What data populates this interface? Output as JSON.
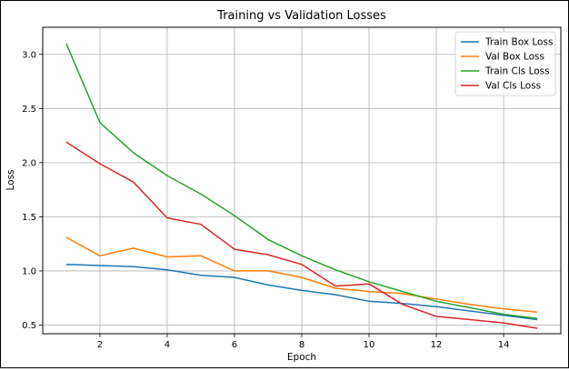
{
  "chart_data": {
    "type": "line",
    "title": "Training vs Validation Losses",
    "xlabel": "Epoch",
    "ylabel": "Loss",
    "x": [
      1,
      2,
      3,
      4,
      5,
      6,
      7,
      8,
      9,
      10,
      11,
      12,
      13,
      14,
      15
    ],
    "xlim": [
      0.3,
      15.7
    ],
    "ylim": [
      0.42,
      3.25
    ],
    "xticks": [
      2,
      4,
      6,
      8,
      10,
      12,
      14
    ],
    "yticks": [
      0.5,
      1.0,
      1.5,
      2.0,
      2.5,
      3.0
    ],
    "xtick_labels": [
      "2",
      "4",
      "6",
      "8",
      "10",
      "12",
      "14"
    ],
    "ytick_labels": [
      "0.5",
      "1.0",
      "1.5",
      "2.0",
      "2.5",
      "3.0"
    ],
    "grid": true,
    "legend_position": "top-right",
    "series": [
      {
        "name": "Train Box Loss",
        "color": "#1f77b4",
        "values": [
          1.06,
          1.05,
          1.04,
          1.01,
          0.96,
          0.94,
          0.87,
          0.82,
          0.78,
          0.72,
          0.7,
          0.67,
          0.63,
          0.59,
          0.55
        ]
      },
      {
        "name": "Val Box Loss",
        "color": "#ff7f0e",
        "values": [
          1.31,
          1.14,
          1.21,
          1.13,
          1.14,
          1.0,
          1.0,
          0.94,
          0.84,
          0.81,
          0.79,
          0.74,
          0.69,
          0.65,
          0.62
        ]
      },
      {
        "name": "Train Cls Loss",
        "color": "#2ca02c",
        "values": [
          3.1,
          2.37,
          2.09,
          1.88,
          1.71,
          1.51,
          1.29,
          1.14,
          1.01,
          0.9,
          0.81,
          0.72,
          0.66,
          0.6,
          0.56
        ]
      },
      {
        "name": "Val Cls Loss",
        "color": "#d62728",
        "values": [
          2.19,
          1.99,
          1.82,
          1.49,
          1.43,
          1.2,
          1.15,
          1.06,
          0.86,
          0.88,
          0.69,
          0.58,
          0.55,
          0.52,
          0.47
        ]
      }
    ]
  }
}
